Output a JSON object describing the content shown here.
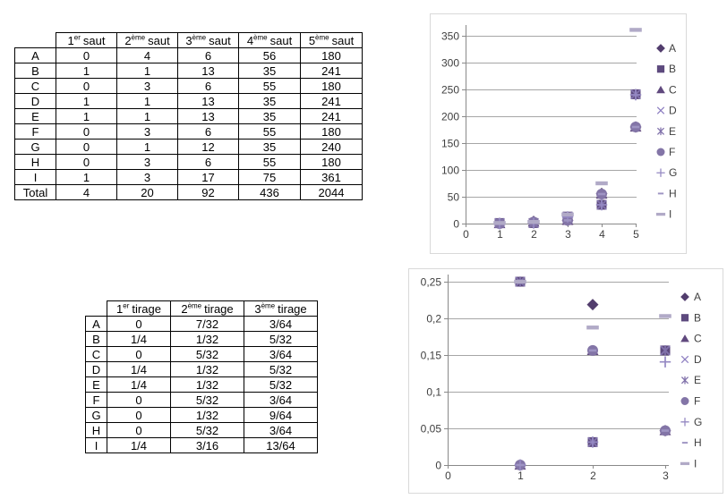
{
  "saut_table": {
    "corner_label": "",
    "columns": [
      {
        "num": "1",
        "sup": "er",
        "word": "saut"
      },
      {
        "num": "2",
        "sup": "ème",
        "word": "saut"
      },
      {
        "num": "3",
        "sup": "ème",
        "word": "saut"
      },
      {
        "num": "4",
        "sup": "ème",
        "word": "saut"
      },
      {
        "num": "5",
        "sup": "ème",
        "word": "saut"
      }
    ],
    "rows": [
      {
        "label": "A",
        "values": [
          "0",
          "4",
          "6",
          "56",
          "180"
        ]
      },
      {
        "label": "B",
        "values": [
          "1",
          "1",
          "13",
          "35",
          "241"
        ]
      },
      {
        "label": "C",
        "values": [
          "0",
          "3",
          "6",
          "55",
          "180"
        ]
      },
      {
        "label": "D",
        "values": [
          "1",
          "1",
          "13",
          "35",
          "241"
        ]
      },
      {
        "label": "E",
        "values": [
          "1",
          "1",
          "13",
          "35",
          "241"
        ]
      },
      {
        "label": "F",
        "values": [
          "0",
          "3",
          "6",
          "55",
          "180"
        ]
      },
      {
        "label": "G",
        "values": [
          "0",
          "1",
          "12",
          "35",
          "240"
        ]
      },
      {
        "label": "H",
        "values": [
          "0",
          "3",
          "6",
          "55",
          "180"
        ]
      },
      {
        "label": "I",
        "values": [
          "1",
          "3",
          "17",
          "75",
          "361"
        ]
      },
      {
        "label": "Total",
        "values": [
          "4",
          "20",
          "92",
          "436",
          "2044"
        ]
      }
    ]
  },
  "tirage_table": {
    "corner_label": "",
    "columns": [
      {
        "num": "1",
        "sup": "er",
        "word": "tirage"
      },
      {
        "num": "2",
        "sup": "ème",
        "word": "tirage"
      },
      {
        "num": "3",
        "sup": "ème",
        "word": "tirage"
      }
    ],
    "rows": [
      {
        "label": "A",
        "values": [
          "0",
          "7/32",
          "3/64"
        ]
      },
      {
        "label": "B",
        "values": [
          "1/4",
          "1/32",
          "5/32"
        ]
      },
      {
        "label": "C",
        "values": [
          "0",
          "5/32",
          "3/64"
        ]
      },
      {
        "label": "D",
        "values": [
          "1/4",
          "1/32",
          "5/32"
        ]
      },
      {
        "label": "E",
        "values": [
          "1/4",
          "1/32",
          "5/32"
        ]
      },
      {
        "label": "F",
        "values": [
          "0",
          "5/32",
          "3/64"
        ]
      },
      {
        "label": "G",
        "values": [
          "0",
          "1/32",
          "9/64"
        ]
      },
      {
        "label": "H",
        "values": [
          "0",
          "5/32",
          "3/64"
        ]
      },
      {
        "label": "I",
        "values": [
          "1/4",
          "3/16",
          "13/64"
        ]
      }
    ]
  },
  "chart_data": [
    {
      "id": "saut-scatter",
      "type": "scatter",
      "title": "",
      "x": [
        1,
        2,
        3,
        4,
        5
      ],
      "series": [
        {
          "name": "A",
          "marker": "diamond",
          "color": "#523d6d",
          "values": [
            0,
            4,
            6,
            56,
            180
          ]
        },
        {
          "name": "B",
          "marker": "square",
          "color": "#5d4a7e",
          "values": [
            1,
            1,
            13,
            35,
            241
          ]
        },
        {
          "name": "C",
          "marker": "triangle",
          "color": "#60497e",
          "values": [
            0,
            3,
            6,
            55,
            180
          ]
        },
        {
          "name": "D",
          "marker": "x",
          "color": "#8d7ec1",
          "values": [
            1,
            1,
            13,
            35,
            241
          ]
        },
        {
          "name": "E",
          "marker": "star",
          "color": "#8172ab",
          "values": [
            1,
            1,
            13,
            35,
            241
          ]
        },
        {
          "name": "F",
          "marker": "circle",
          "color": "#8375a7",
          "values": [
            0,
            3,
            6,
            55,
            180
          ]
        },
        {
          "name": "G",
          "marker": "plus",
          "color": "#9589c3",
          "values": [
            0,
            1,
            12,
            35,
            240
          ]
        },
        {
          "name": "H",
          "marker": "dash",
          "color": "#9e94c3",
          "values": [
            0,
            3,
            6,
            55,
            180
          ]
        },
        {
          "name": "I",
          "marker": "longdash",
          "color": "#b1aac7",
          "values": [
            1,
            3,
            17,
            75,
            361
          ]
        }
      ],
      "xlim": [
        0,
        5
      ],
      "ylim": [
        0,
        350
      ],
      "x_ticks": [
        0,
        1,
        2,
        3,
        4,
        5
      ],
      "x_tick_labels": [
        "0",
        "1",
        "2",
        "3",
        "4",
        "5"
      ],
      "y_ticks": [
        0,
        50,
        100,
        150,
        200,
        250,
        300,
        350
      ],
      "y_tick_labels": [
        "0",
        "50",
        "100",
        "150",
        "200",
        "250",
        "300",
        "350"
      ],
      "grid": "horizontal",
      "legend_position": "right",
      "legend_labels": [
        "A",
        "B",
        "C",
        "D",
        "E",
        "F",
        "G",
        "H",
        "I"
      ]
    },
    {
      "id": "tirage-scatter",
      "type": "scatter",
      "title": "",
      "x": [
        1,
        2,
        3
      ],
      "series": [
        {
          "name": "A",
          "marker": "diamond",
          "color": "#523d6d",
          "values": [
            0,
            0.21875,
            0.046875
          ]
        },
        {
          "name": "B",
          "marker": "square",
          "color": "#5d4a7e",
          "values": [
            0.25,
            0.03125,
            0.15625
          ]
        },
        {
          "name": "C",
          "marker": "triangle",
          "color": "#60497e",
          "values": [
            0,
            0.15625,
            0.046875
          ]
        },
        {
          "name": "D",
          "marker": "x",
          "color": "#8d7ec1",
          "values": [
            0.25,
            0.03125,
            0.15625
          ]
        },
        {
          "name": "E",
          "marker": "star",
          "color": "#8172ab",
          "values": [
            0.25,
            0.03125,
            0.15625
          ]
        },
        {
          "name": "F",
          "marker": "circle",
          "color": "#8375a7",
          "values": [
            0,
            0.15625,
            0.046875
          ]
        },
        {
          "name": "G",
          "marker": "plus",
          "color": "#9589c3",
          "values": [
            0,
            0.03125,
            0.140625
          ]
        },
        {
          "name": "H",
          "marker": "dash",
          "color": "#9e94c3",
          "values": [
            0,
            0.15625,
            0.046875
          ]
        },
        {
          "name": "I",
          "marker": "longdash",
          "color": "#b1aac7",
          "values": [
            0.25,
            0.1875,
            0.203125
          ]
        }
      ],
      "xlim": [
        0,
        3
      ],
      "ylim": [
        0,
        0.25
      ],
      "x_ticks": [
        0,
        1,
        2,
        3
      ],
      "x_tick_labels": [
        "0",
        "1",
        "2",
        "3"
      ],
      "y_ticks": [
        0,
        0.05,
        0.1,
        0.15,
        0.2,
        0.25
      ],
      "y_tick_labels": [
        "0",
        "0,05",
        "0,1",
        "0,15",
        "0,2",
        "0,25"
      ],
      "grid": "horizontal",
      "legend_position": "right",
      "legend_labels": [
        "A",
        "B",
        "C",
        "D",
        "E",
        "F",
        "G",
        "H",
        "I"
      ]
    }
  ],
  "colors": {
    "grid": "#a6a6a6",
    "axis": "#898989",
    "tick_text": "#3f3f3f",
    "chart_border": "#d9d9d9",
    "table_border": "#000000"
  }
}
